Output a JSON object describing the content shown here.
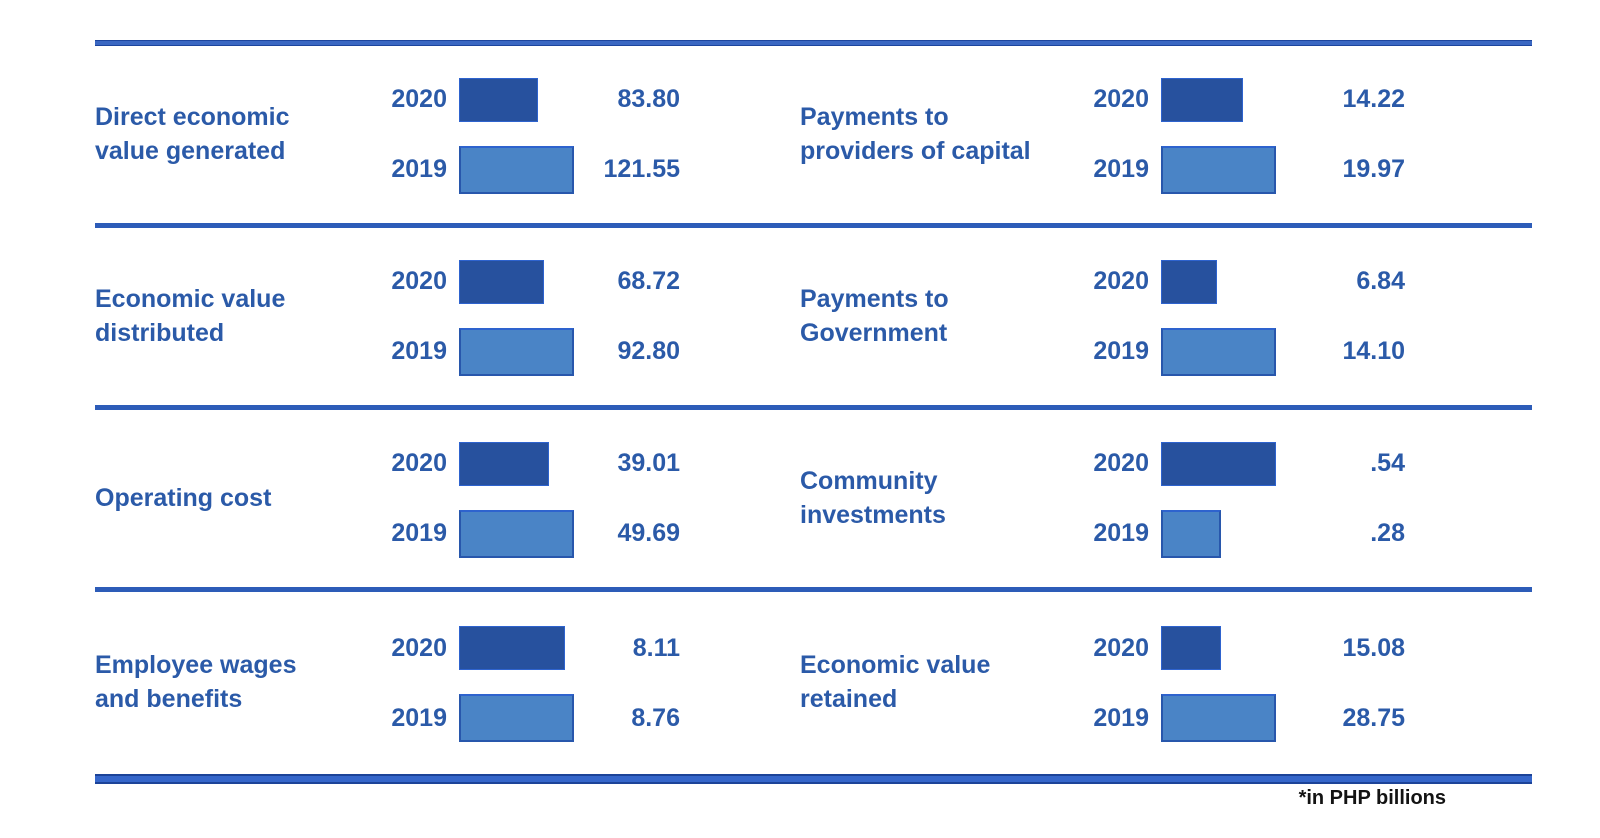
{
  "chart_data": {
    "type": "bar",
    "orientation": "horizontal",
    "title": "",
    "unit_note": "*in PHP billions",
    "years": [
      "2020",
      "2019"
    ],
    "legend_position": "none",
    "grid": false,
    "groups": [
      {
        "label": "Direct economic\nvalue generated",
        "column": "left",
        "rows": [
          {
            "year": "2020",
            "value": 83.8,
            "display": "83.80"
          },
          {
            "year": "2019",
            "value": 121.55,
            "display": "121.55"
          }
        ]
      },
      {
        "label": "Payments to\nproviders of capital",
        "column": "right",
        "rows": [
          {
            "year": "2020",
            "value": 14.22,
            "display": "14.22"
          },
          {
            "year": "2019",
            "value": 19.97,
            "display": "19.97"
          }
        ]
      },
      {
        "label": "Economic value\ndistributed",
        "column": "left",
        "rows": [
          {
            "year": "2020",
            "value": 68.72,
            "display": "68.72"
          },
          {
            "year": "2019",
            "value": 92.8,
            "display": "92.80"
          }
        ]
      },
      {
        "label": "Payments to\nGovernment",
        "column": "right",
        "rows": [
          {
            "year": "2020",
            "value": 6.84,
            "display": "6.84"
          },
          {
            "year": "2019",
            "value": 14.1,
            "display": "14.10"
          }
        ]
      },
      {
        "label": "Operating cost",
        "column": "left",
        "rows": [
          {
            "year": "2020",
            "value": 39.01,
            "display": "39.01"
          },
          {
            "year": "2019",
            "value": 49.69,
            "display": "49.69"
          }
        ]
      },
      {
        "label": "Community\ninvestments",
        "column": "right",
        "rows": [
          {
            "year": "2020",
            "value": 0.54,
            "display": ".54"
          },
          {
            "year": "2019",
            "value": 0.28,
            "display": ".28"
          }
        ]
      },
      {
        "label": "Employee wages\nand benefits",
        "column": "left",
        "rows": [
          {
            "year": "2020",
            "value": 8.11,
            "display": "8.11"
          },
          {
            "year": "2019",
            "value": 8.76,
            "display": "8.76"
          }
        ]
      },
      {
        "label": "Economic value\nretained",
        "column": "right",
        "rows": [
          {
            "year": "2020",
            "value": 15.08,
            "display": "15.08"
          },
          {
            "year": "2019",
            "value": 28.75,
            "display": "28.75"
          }
        ]
      }
    ]
  },
  "colors": {
    "bar_2020": "#27519E",
    "bar_2020_edge": "#2E63CE",
    "bar_2019": "#4A84C6",
    "bar_2019_edge": "#2857AC",
    "text_blue": "#2B5AA8",
    "rule_blue": "#3A67C2",
    "rule_edge": "#1D459E",
    "footer_text": "#131313"
  }
}
